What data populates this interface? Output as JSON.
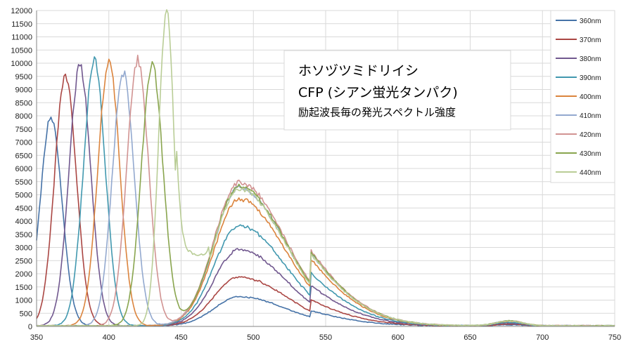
{
  "chart_data": {
    "type": "line",
    "title_lines": [
      "ホソヅツミドリイシ",
      "CFP (シアン蛍光タンパク)",
      "励起波長毎の発光スペクトル強度"
    ],
    "xlabel": "",
    "ylabel": "",
    "xlim": [
      350,
      750
    ],
    "ylim": [
      0,
      12000
    ],
    "x_ticks": [
      350,
      400,
      450,
      500,
      550,
      600,
      650,
      700,
      750
    ],
    "y_ticks": [
      0,
      500,
      1000,
      1500,
      2000,
      2500,
      3000,
      3500,
      4000,
      4500,
      5000,
      5500,
      6000,
      6500,
      7000,
      7500,
      8000,
      8500,
      9000,
      9500,
      10000,
      10500,
      11000,
      11500,
      12000
    ],
    "grid": true,
    "legend_position": "right",
    "series": [
      {
        "name": "360nm",
        "color": "#4572A7",
        "exc_peak": 7900,
        "em_peak": 1100
      },
      {
        "name": "370nm",
        "color": "#AA4643",
        "exc_peak": 9500,
        "em_peak": 1850
      },
      {
        "name": "380nm",
        "color": "#71588F",
        "exc_peak": 9850,
        "em_peak": 2900
      },
      {
        "name": "390nm",
        "color": "#4198AF",
        "exc_peak": 10100,
        "em_peak": 3800
      },
      {
        "name": "400nm",
        "color": "#DB843D",
        "exc_peak": 10050,
        "em_peak": 4800
      },
      {
        "name": "410nm",
        "color": "#93A9CF",
        "exc_peak": 9600,
        "em_peak": 5250
      },
      {
        "name": "420nm",
        "color": "#D19392",
        "exc_peak": 10100,
        "em_peak": 5450
      },
      {
        "name": "430nm",
        "color": "#89A54E",
        "exc_peak": 9900,
        "em_peak": 5300
      },
      {
        "name": "440nm",
        "color": "#B9CD96",
        "exc_peak": 11900,
        "em_peak": 5200
      }
    ]
  }
}
